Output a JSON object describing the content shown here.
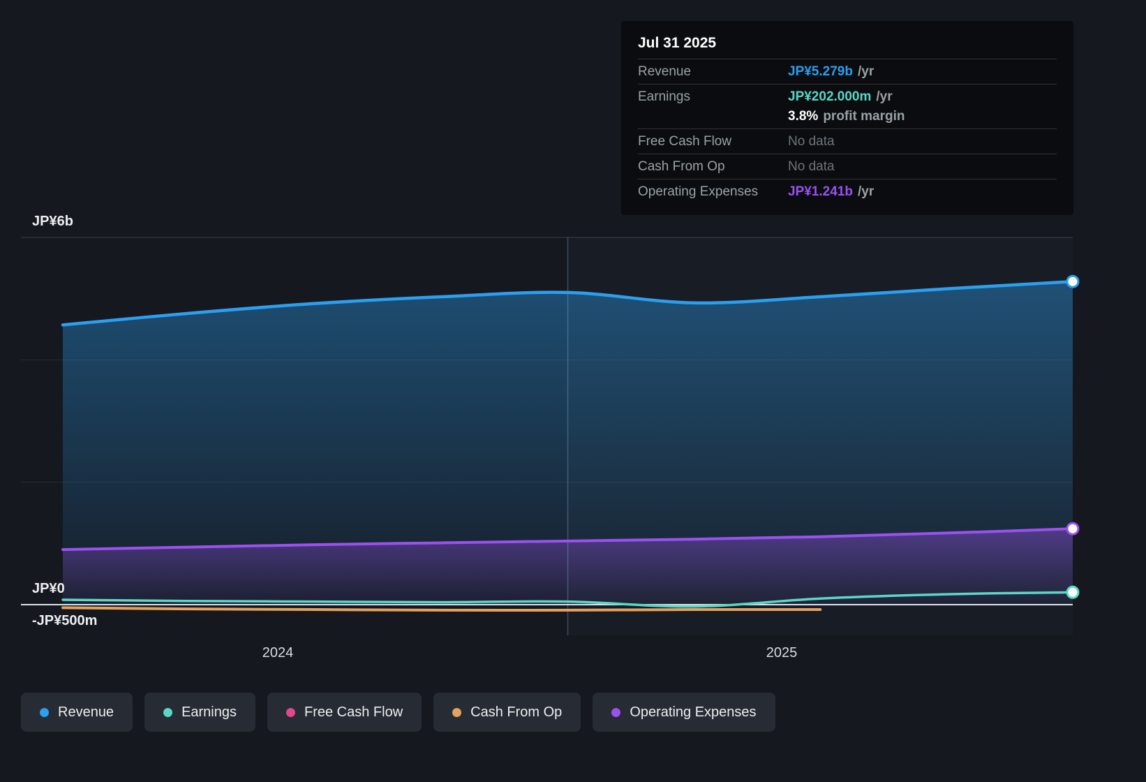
{
  "tooltip": {
    "date": "Jul 31 2025",
    "rows": [
      {
        "label": "Revenue",
        "value": "JP¥5.279b",
        "suffix": " /yr",
        "color": "#2b9ff0"
      },
      {
        "label": "Earnings",
        "value": "JP¥202.000m",
        "suffix": " /yr",
        "color": "#5ad8c5"
      },
      {
        "label": "",
        "value": "3.8%",
        "suffix": " profit margin",
        "color": "#ffffff"
      },
      {
        "label": "Free Cash Flow",
        "value": "No data"
      },
      {
        "label": "Cash From Op",
        "value": "No data"
      },
      {
        "label": "Operating Expenses",
        "value": "JP¥1.241b",
        "suffix": " /yr",
        "color": "#9b51f0"
      }
    ]
  },
  "axis": {
    "y_labels": [
      "JP¥6b",
      "JP¥0",
      "-JP¥500m"
    ],
    "x_labels": [
      "2024",
      "2025"
    ]
  },
  "legend": [
    {
      "label": "Revenue",
      "color": "#2b9ff0"
    },
    {
      "label": "Earnings",
      "color": "#5ad8c5"
    },
    {
      "label": "Free Cash Flow",
      "color": "#e0488b"
    },
    {
      "label": "Cash From Op",
      "color": "#e5a25c"
    },
    {
      "label": "Operating Expenses",
      "color": "#9b51f0"
    }
  ],
  "chart_data": {
    "type": "line",
    "title": "Revenue & Expenses history to Jul 31 2025",
    "y_unit": "JP¥ billions",
    "ylim": [
      -0.5,
      6
    ],
    "y_gridlines": [
      6,
      4,
      2,
      0
    ],
    "x": [
      2023.58,
      2023.83,
      2024.08,
      2024.33,
      2024.58,
      2024.83,
      2025.08,
      2025.33,
      2025.58
    ],
    "x_tick_labels": [
      "2024",
      "2025"
    ],
    "x_tick_positions": [
      2024.0,
      2025.0
    ],
    "crosshair_x": 2024.58,
    "series": [
      {
        "name": "Revenue",
        "color": "#2b9ff0",
        "fill": true,
        "marker": true,
        "width": 4.5,
        "values": [
          4.57,
          4.76,
          4.92,
          5.03,
          5.1,
          4.93,
          5.03,
          5.16,
          5.279
        ]
      },
      {
        "name": "Operating Expenses",
        "color": "#9b51f0",
        "fill": true,
        "marker": true,
        "width": 4,
        "values": [
          0.9,
          0.94,
          0.98,
          1.01,
          1.04,
          1.07,
          1.11,
          1.17,
          1.241
        ]
      },
      {
        "name": "Cash From Op",
        "color": "#e5a25c",
        "fill": false,
        "marker": false,
        "width": 4,
        "x": [
          2023.58,
          2023.83,
          2024.08,
          2024.33,
          2024.58,
          2024.83,
          2025.08
        ],
        "values": [
          -0.05,
          -0.07,
          -0.08,
          -0.09,
          -0.09,
          -0.08,
          -0.08
        ]
      },
      {
        "name": "Earnings",
        "color": "#5ad8c5",
        "fill": false,
        "marker": true,
        "width": 3.5,
        "values": [
          0.08,
          0.06,
          0.05,
          0.04,
          0.05,
          -0.03,
          0.1,
          0.17,
          0.202
        ]
      },
      {
        "name": "Free Cash Flow",
        "color": "#e0488b",
        "fill": false,
        "marker": false,
        "values": null
      }
    ]
  }
}
